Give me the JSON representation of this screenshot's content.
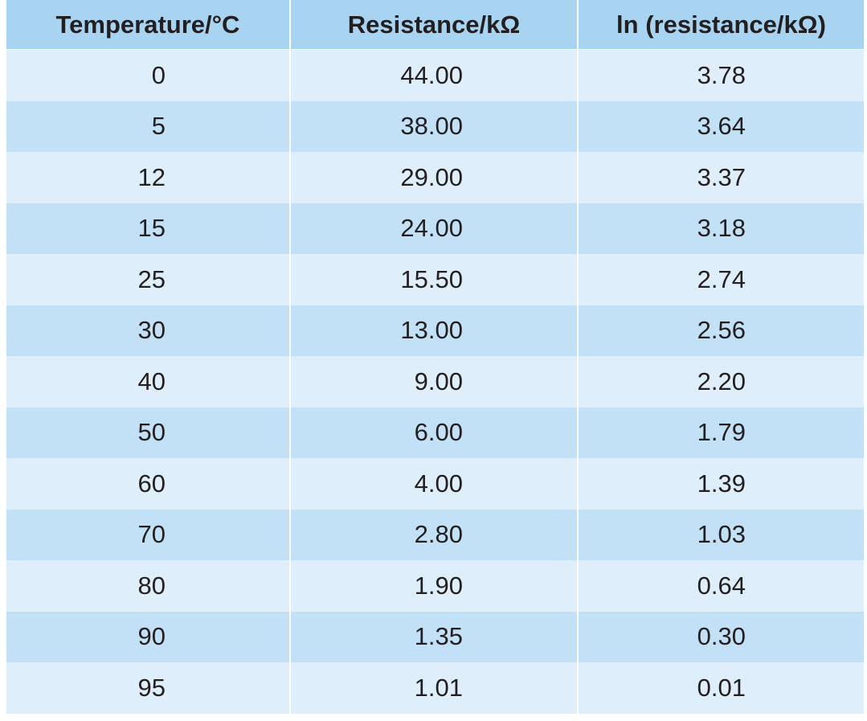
{
  "table": {
    "header": [
      "Temperature/°C",
      "Resistance/kΩ",
      "ln (resistance/kΩ)"
    ],
    "rows": [
      [
        "0",
        "44.00",
        "3.78"
      ],
      [
        "5",
        "38.00",
        "3.64"
      ],
      [
        "12",
        "29.00",
        "3.37"
      ],
      [
        "15",
        "24.00",
        "3.18"
      ],
      [
        "25",
        "15.50",
        "2.74"
      ],
      [
        "30",
        "13.00",
        "2.56"
      ],
      [
        "40",
        "9.00",
        "2.20"
      ],
      [
        "50",
        "6.00",
        "1.79"
      ],
      [
        "60",
        "4.00",
        "1.39"
      ],
      [
        "70",
        "2.80",
        "1.03"
      ],
      [
        "80",
        "1.90",
        "0.64"
      ],
      [
        "90",
        "1.35",
        "0.30"
      ],
      [
        "95",
        "1.01",
        "0.01"
      ]
    ]
  }
}
